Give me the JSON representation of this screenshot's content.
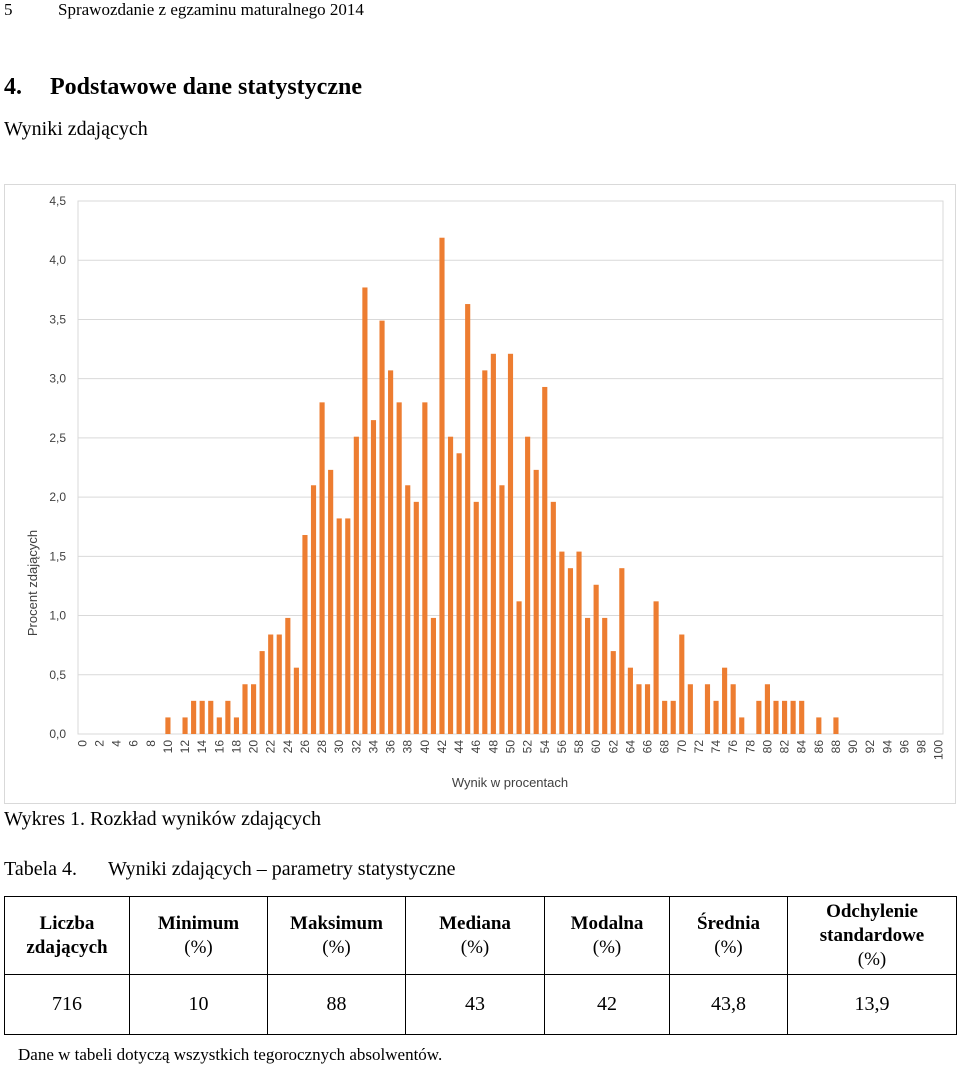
{
  "header": {
    "page_number": "5",
    "report_title": "Sprawozdanie z egzaminu maturalnego 2014"
  },
  "section": {
    "number": "4.",
    "title": "Podstawowe dane statystyczne"
  },
  "subtitle": "Wyniki zdających",
  "figure_caption": "Wykres 1. Rozkład wyników zdających",
  "table_caption": {
    "label": "Tabela 4.",
    "text": "Wyniki zdających – parametry statystyczne"
  },
  "chart_data": {
    "type": "bar",
    "xlabel": "Wynik w procentach",
    "ylabel": "Procent zdających",
    "ylim": [
      0,
      4.5
    ],
    "yticks": [
      "0,0",
      "0,5",
      "1,0",
      "1,5",
      "2,0",
      "2,5",
      "3,0",
      "3,5",
      "4,0",
      "4,5"
    ],
    "xticks": [
      0,
      2,
      4,
      6,
      8,
      10,
      12,
      14,
      16,
      18,
      20,
      22,
      24,
      26,
      28,
      30,
      32,
      34,
      36,
      38,
      40,
      42,
      44,
      46,
      48,
      50,
      52,
      54,
      56,
      58,
      60,
      62,
      64,
      66,
      68,
      70,
      72,
      74,
      76,
      78,
      80,
      82,
      84,
      86,
      88,
      90,
      92,
      94,
      96,
      98,
      100
    ],
    "x": [
      0,
      1,
      2,
      3,
      4,
      5,
      6,
      7,
      8,
      9,
      10,
      11,
      12,
      13,
      14,
      15,
      16,
      17,
      18,
      19,
      20,
      21,
      22,
      23,
      24,
      25,
      26,
      27,
      28,
      29,
      30,
      31,
      32,
      33,
      34,
      35,
      36,
      37,
      38,
      39,
      40,
      41,
      42,
      43,
      44,
      45,
      46,
      47,
      48,
      49,
      50,
      51,
      52,
      53,
      54,
      55,
      56,
      57,
      58,
      59,
      60,
      61,
      62,
      63,
      64,
      65,
      66,
      67,
      68,
      69,
      70,
      71,
      72,
      73,
      74,
      75,
      76,
      77,
      78,
      79,
      80,
      81,
      82,
      83,
      84,
      85,
      86,
      87,
      88,
      89,
      90,
      91,
      92,
      93,
      94,
      95,
      96,
      97,
      98,
      99,
      100
    ],
    "values": [
      0,
      0,
      0,
      0,
      0,
      0,
      0,
      0,
      0,
      0,
      0.14,
      0,
      0.14,
      0.28,
      0.28,
      0.28,
      0.14,
      0.28,
      0.14,
      0.42,
      0.42,
      0.7,
      0.84,
      0.84,
      0.98,
      0.56,
      1.68,
      2.1,
      2.8,
      2.23,
      1.82,
      1.82,
      2.51,
      3.77,
      2.65,
      3.49,
      3.07,
      2.8,
      2.1,
      1.96,
      2.8,
      0.98,
      4.19,
      2.51,
      2.37,
      3.63,
      1.96,
      3.07,
      3.21,
      2.1,
      3.21,
      1.12,
      2.51,
      2.23,
      2.93,
      1.96,
      1.54,
      1.4,
      1.54,
      0.98,
      1.26,
      0.98,
      0.7,
      1.4,
      0.56,
      0.42,
      0.42,
      1.12,
      0.28,
      0.28,
      0.84,
      0.42,
      0,
      0.42,
      0.28,
      0.56,
      0.42,
      0.14,
      0,
      0.28,
      0.42,
      0.28,
      0.28,
      0.28,
      0.28,
      0,
      0.14,
      0,
      0.14,
      0,
      0,
      0,
      0,
      0,
      0,
      0,
      0,
      0,
      0,
      0,
      0
    ],
    "bar_color": "#ED7D31",
    "grid": true
  },
  "table": {
    "headers": [
      {
        "line1": "Liczba",
        "line2": "zdających",
        "line3": ""
      },
      {
        "line1": "Minimum",
        "line2": "(%)",
        "line3": ""
      },
      {
        "line1": "Maksimum",
        "line2": "(%)",
        "line3": ""
      },
      {
        "line1": "Mediana",
        "line2": "(%)",
        "line3": ""
      },
      {
        "line1": "Modalna",
        "line2": "(%)",
        "line3": ""
      },
      {
        "line1": "Średnia",
        "line2": "(%)",
        "line3": ""
      },
      {
        "line1": "Odchylenie",
        "line2": "standardowe",
        "line3": "(%)"
      }
    ],
    "values": [
      "716",
      "10",
      "88",
      "43",
      "42",
      "43,8",
      "13,9"
    ]
  },
  "footnote": "Dane w tabeli dotyczą wszystkich tegorocznych absolwentów."
}
